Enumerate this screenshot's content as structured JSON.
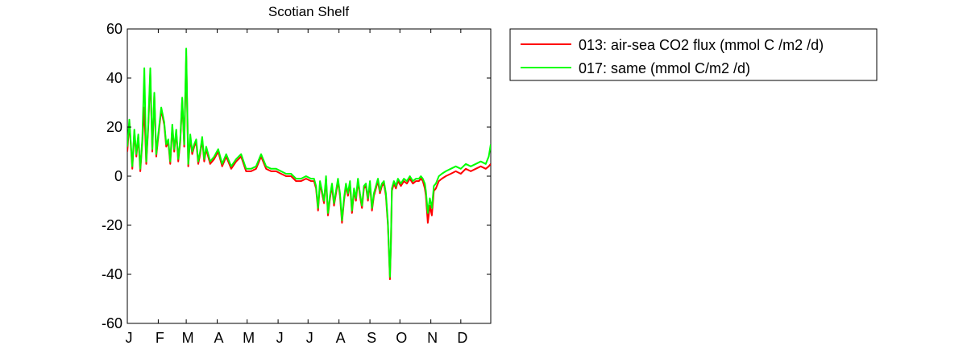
{
  "chart_data": {
    "type": "line",
    "title": "Scotian Shelf",
    "xlabel": "",
    "ylabel": "",
    "x_ticks": [
      "J",
      "F",
      "M",
      "A",
      "M",
      "J",
      "J",
      "A",
      "S",
      "O",
      "N",
      "D"
    ],
    "xlim": [
      1,
      365
    ],
    "ylim": [
      -60,
      60
    ],
    "y_ticks": [
      60,
      40,
      20,
      0,
      -20,
      -40,
      -60
    ],
    "grid": false,
    "legend_placement": "outside-right",
    "series": [
      {
        "name": "013: air-sea CO2 flux (mmol C /m2 /d)",
        "color": "#ff0000",
        "x": [
          1,
          3,
          6,
          8,
          10,
          12,
          14,
          16,
          18,
          20,
          22,
          24,
          26,
          28,
          30,
          32,
          35,
          38,
          40,
          42,
          44,
          46,
          48,
          50,
          52,
          54,
          56,
          58,
          60,
          62,
          64,
          66,
          68,
          70,
          72,
          74,
          76,
          78,
          80,
          84,
          88,
          92,
          96,
          100,
          105,
          110,
          115,
          120,
          125,
          130,
          135,
          140,
          145,
          150,
          155,
          160,
          165,
          170,
          175,
          180,
          185,
          188,
          190,
          192,
          194,
          196,
          198,
          200,
          202,
          204,
          206,
          208,
          210,
          212,
          214,
          216,
          218,
          220,
          222,
          224,
          226,
          228,
          230,
          232,
          234,
          236,
          238,
          240,
          242,
          244,
          246,
          248,
          250,
          252,
          254,
          256,
          258,
          260,
          262,
          264,
          265,
          266,
          268,
          270,
          272,
          275,
          278,
          281,
          284,
          287,
          290,
          293,
          295,
          297,
          299,
          300,
          302,
          304,
          306,
          308,
          310,
          313,
          316,
          320,
          325,
          330,
          335,
          340,
          345,
          350,
          355,
          360,
          363,
          365
        ],
        "values": [
          10,
          22,
          3,
          18,
          8,
          16,
          2,
          14,
          28,
          5,
          20,
          42,
          10,
          33,
          8,
          16,
          27,
          21,
          12,
          14,
          5,
          20,
          10,
          18,
          6,
          14,
          31,
          12,
          49,
          4,
          16,
          9,
          12,
          14,
          5,
          9,
          15,
          6,
          11,
          5,
          7,
          10,
          4,
          8,
          3,
          6,
          8,
          2,
          2,
          3,
          8,
          3,
          2,
          2,
          1,
          0,
          0,
          -2,
          -2,
          -1,
          -2,
          -2,
          -5,
          -14,
          -3,
          -7,
          -11,
          -1,
          -16,
          -9,
          -4,
          -12,
          -7,
          -2,
          -8,
          -19,
          -10,
          -4,
          -8,
          -3,
          -15,
          -6,
          -10,
          -2,
          -8,
          -13,
          -5,
          -4,
          -10,
          -3,
          -14,
          -8,
          -5,
          -2,
          -7,
          -4,
          -3,
          -8,
          -20,
          -42,
          -28,
          -6,
          -3,
          -5,
          -2,
          -4,
          -2,
          -3,
          -1,
          -3,
          -2,
          -2,
          -1,
          -2,
          -5,
          -8,
          -19,
          -12,
          -16,
          -6,
          -5,
          -2,
          -1,
          0,
          1,
          2,
          1,
          3,
          2,
          3,
          4,
          3,
          4,
          5
        ],
        "visible_behind": true
      },
      {
        "name": "017: same (mmol C/m2 /d)",
        "color": "#00ff00",
        "x": [
          1,
          3,
          6,
          8,
          10,
          12,
          14,
          16,
          18,
          20,
          22,
          24,
          26,
          28,
          30,
          32,
          35,
          38,
          40,
          42,
          44,
          46,
          48,
          50,
          52,
          54,
          56,
          58,
          60,
          62,
          64,
          66,
          68,
          70,
          72,
          74,
          76,
          78,
          80,
          84,
          88,
          92,
          96,
          100,
          105,
          110,
          115,
          120,
          125,
          130,
          135,
          140,
          145,
          150,
          155,
          160,
          165,
          170,
          175,
          180,
          185,
          188,
          190,
          192,
          194,
          196,
          198,
          200,
          202,
          204,
          206,
          208,
          210,
          212,
          214,
          216,
          218,
          220,
          222,
          224,
          226,
          228,
          230,
          232,
          234,
          236,
          238,
          240,
          242,
          244,
          246,
          248,
          250,
          252,
          254,
          256,
          258,
          260,
          262,
          264,
          265,
          266,
          268,
          270,
          272,
          275,
          278,
          281,
          284,
          287,
          290,
          293,
          295,
          297,
          299,
          300,
          302,
          304,
          306,
          308,
          310,
          313,
          316,
          320,
          325,
          330,
          335,
          340,
          345,
          350,
          355,
          360,
          363,
          365
        ],
        "values": [
          12,
          23,
          4,
          19,
          9,
          17,
          3,
          15,
          44,
          6,
          21,
          44,
          11,
          34,
          9,
          17,
          28,
          22,
          13,
          15,
          6,
          21,
          11,
          19,
          7,
          15,
          32,
          13,
          52,
          5,
          17,
          10,
          13,
          15,
          6,
          10,
          16,
          7,
          12,
          6,
          8,
          11,
          5,
          9,
          4,
          7,
          9,
          3,
          3,
          4,
          9,
          4,
          3,
          3,
          2,
          1,
          1,
          -1,
          -1,
          0,
          -1,
          -1,
          -4,
          -13,
          -2,
          -6,
          -10,
          0,
          -15,
          -8,
          -3,
          -11,
          -6,
          -1,
          -7,
          -18,
          -9,
          -3,
          -7,
          -2,
          -14,
          -5,
          -9,
          -1,
          -7,
          -12,
          -4,
          -3,
          -9,
          -2,
          -13,
          -7,
          -4,
          -1,
          -6,
          -3,
          -2,
          -7,
          -19,
          -41,
          -27,
          -5,
          -2,
          -4,
          -1,
          -3,
          -1,
          -2,
          0,
          -2,
          -1,
          -1,
          0,
          -1,
          -3,
          -6,
          -15,
          -9,
          -13,
          -4,
          -3,
          0,
          1,
          2,
          3,
          4,
          3,
          5,
          4,
          5,
          6,
          5,
          8,
          13
        ]
      }
    ]
  }
}
